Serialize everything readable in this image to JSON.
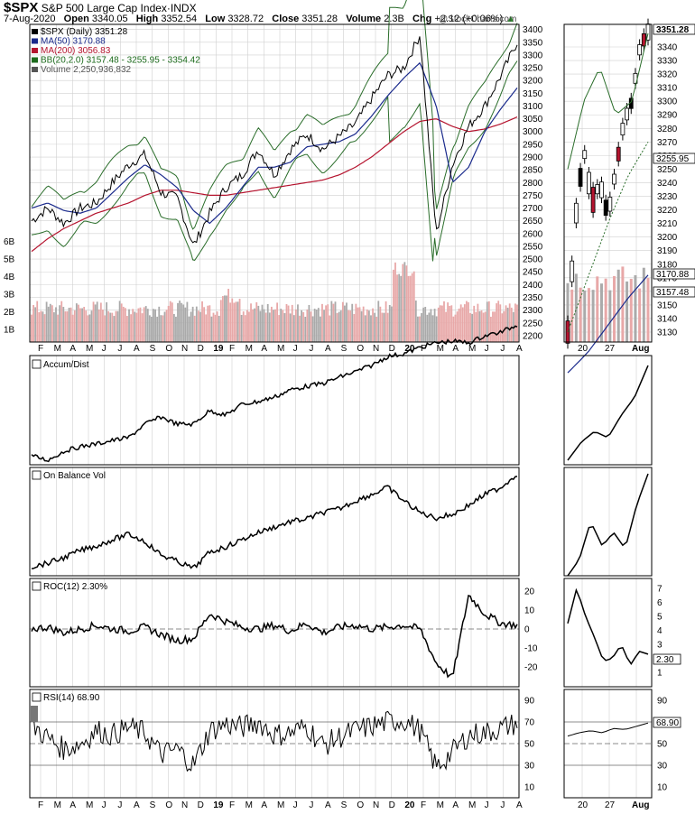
{
  "header": {
    "symbol": "$SPX",
    "name": "S&P 500 Large Cap Index",
    "exchange": "INDX",
    "date": "7-Aug-2020",
    "open_label": "Open",
    "open": "3340.05",
    "high_label": "High",
    "high": "3352.54",
    "low_label": "Low",
    "low": "3328.72",
    "close_label": "Close",
    "close": "3351.28",
    "volume_label": "Volume",
    "volume": "2.3B",
    "chg_label": "Chg",
    "chg": "+2.12 (+0.06%)"
  },
  "watermark": "@StockCharts.com",
  "legend": [
    {
      "text": "$SPX (Daily) 3351.28",
      "color": "#000000"
    },
    {
      "text": "MA(50) 3170.88",
      "color": "#1a2a8c"
    },
    {
      "text": "MA(200) 3056.83",
      "color": "#b5142f"
    },
    {
      "text": "BB(20,2.0) 3157.48 - 3255.95 - 3354.42",
      "color": "#1d6b1d"
    },
    {
      "text": "Volume 2,250,936,832",
      "color": "#555555"
    }
  ],
  "colors": {
    "bb": "#2a6d2a",
    "ma50": "#1a2a8c",
    "ma200": "#b5142f",
    "up_vol": "#e8a8a8",
    "down_vol": "#aaaaaa",
    "grid": "#d0d0d0"
  },
  "price_axis": {
    "ticks": [
      "3400",
      "3350",
      "3300",
      "3250",
      "3200",
      "3150",
      "3100",
      "3050",
      "3000",
      "2950",
      "2900",
      "2850",
      "2800",
      "2750",
      "2700",
      "2650",
      "2600",
      "2550",
      "2500",
      "2450",
      "2400",
      "2350",
      "2300",
      "2250",
      "2200"
    ]
  },
  "volume_axis": {
    "ticks": [
      "6B",
      "5B",
      "4B",
      "3B",
      "2B",
      "1B"
    ]
  },
  "zoom_price_ticks": [
    "3340",
    "3330",
    "3320",
    "3310",
    "3300",
    "3290",
    "3280",
    "3270",
    "3260",
    "3250",
    "3240",
    "3230",
    "3220",
    "3210",
    "3200",
    "3190",
    "3180",
    "3170",
    "3160",
    "3150",
    "3140",
    "3130"
  ],
  "zoom_badges": [
    {
      "text": "3351.28",
      "bold": true
    },
    {
      "text": "3255.95",
      "bold": false
    },
    {
      "text": "3170.88",
      "bold": false
    },
    {
      "text": "3157.48",
      "bold": false
    }
  ],
  "x_months": [
    "F",
    "M",
    "A",
    "M",
    "J",
    "J",
    "A",
    "S",
    "O",
    "N",
    "D",
    "19",
    "F",
    "M",
    "A",
    "M",
    "J",
    "J",
    "A",
    "S",
    "O",
    "N",
    "D",
    "20",
    "F",
    "M",
    "A",
    "M",
    "J",
    "J",
    "A"
  ],
  "zoom_x": [
    "20",
    "27",
    "Aug"
  ],
  "panels": {
    "accum": {
      "label": "Accum/Dist"
    },
    "obv": {
      "label": "On Balance Vol"
    },
    "roc": {
      "label": "ROC(12) 2.30%",
      "ticks": [
        "20",
        "10",
        "0",
        "-10",
        "-20"
      ],
      "zoom_ticks": [
        "7",
        "6",
        "5",
        "4",
        "3",
        "2",
        "1"
      ],
      "badge": "2.30"
    },
    "rsi": {
      "label": "RSI(14) 68.90",
      "ticks": [
        "90",
        "70",
        "50",
        "30",
        "10"
      ],
      "zoom_ticks": [
        "90",
        "70",
        "50",
        "30",
        "10"
      ],
      "badge": "68.90"
    }
  },
  "chart_data": [
    {
      "type": "line",
      "title": "$SPX (Daily) 3351.28",
      "x": [
        "Feb-2018",
        "Mar-2018",
        "Apr-2018",
        "May-2018",
        "Jun-2018",
        "Jul-2018",
        "Aug-2018",
        "Sep-2018",
        "Oct-2018",
        "Nov-2018",
        "Dec-2018",
        "Jan-2019",
        "Feb-2019",
        "Mar-2019",
        "Apr-2019",
        "May-2019",
        "Jun-2019",
        "Jul-2019",
        "Aug-2019",
        "Sep-2019",
        "Oct-2019",
        "Nov-2019",
        "Dec-2019",
        "Jan-2020",
        "Feb-2020",
        "Mar-2020",
        "Apr-2020",
        "May-2020",
        "Jun-2020",
        "Jul-2020",
        "Aug-2020"
      ],
      "series": [
        {
          "name": "$SPX (Daily)",
          "values": [
            2650,
            2700,
            2640,
            2700,
            2720,
            2800,
            2870,
            2910,
            2760,
            2740,
            2550,
            2680,
            2780,
            2830,
            2930,
            2830,
            2930,
            2990,
            2930,
            2980,
            3030,
            3130,
            3220,
            3250,
            3380,
            2600,
            2870,
            3020,
            3100,
            3220,
            3351
          ]
        },
        {
          "name": "MA(50)",
          "values": [
            2700,
            2720,
            2690,
            2680,
            2700,
            2760,
            2820,
            2870,
            2830,
            2780,
            2690,
            2640,
            2700,
            2780,
            2860,
            2860,
            2880,
            2940,
            2950,
            2960,
            2990,
            3060,
            3140,
            3210,
            3270,
            3100,
            2800,
            2860,
            3000,
            3090,
            3171
          ]
        },
        {
          "name": "MA(200)",
          "values": [
            2530,
            2580,
            2620,
            2650,
            2680,
            2700,
            2720,
            2750,
            2770,
            2770,
            2760,
            2750,
            2750,
            2760,
            2770,
            2780,
            2790,
            2800,
            2810,
            2830,
            2860,
            2900,
            2950,
            3000,
            3040,
            3050,
            3020,
            3000,
            3010,
            3030,
            3057
          ]
        }
      ],
      "ylim": [
        2175,
        3420
      ]
    },
    {
      "type": "bar",
      "title": "Volume 2,250,936,832",
      "latest": 2250936832,
      "ylim": [
        0,
        6000000000
      ]
    },
    {
      "type": "line",
      "title": "ROC(12) 2.30%",
      "latest": 2.3,
      "ylim": [
        -27,
        27
      ]
    },
    {
      "type": "line",
      "title": "RSI(14) 68.90",
      "latest": 68.9,
      "ylim": [
        0,
        100
      ]
    }
  ]
}
